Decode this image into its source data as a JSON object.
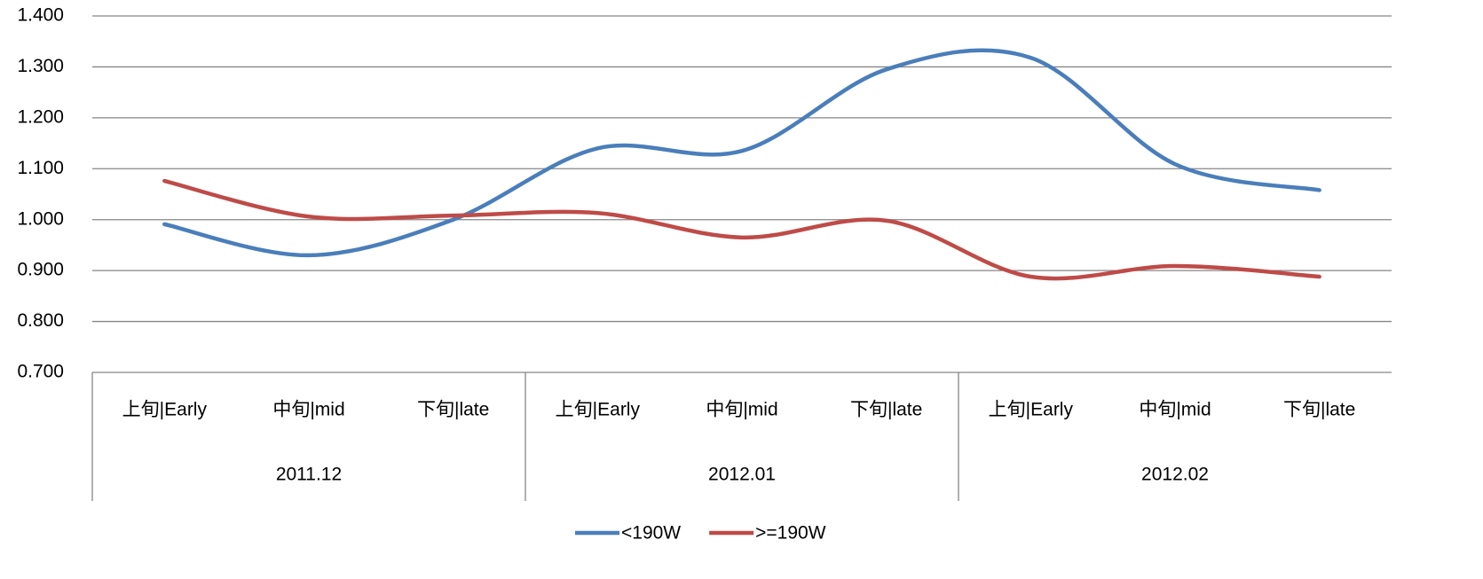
{
  "chart_data": {
    "type": "line",
    "categories": [
      "上旬|Early",
      "中旬|mid",
      "下旬|late",
      "上旬|Early",
      "中旬|mid",
      "下旬|late",
      "上旬|Early",
      "中旬|mid",
      "下旬|late"
    ],
    "groups": [
      "2011.12",
      "2012.01",
      "2012.02"
    ],
    "series": [
      {
        "name": "<190W",
        "color": "#4a7ebb",
        "values": [
          0.991,
          0.93,
          1.0,
          1.14,
          1.135,
          1.295,
          1.318,
          1.109,
          1.058
        ]
      },
      {
        "name": ">=190W",
        "color": "#be4b48",
        "values": [
          1.076,
          1.006,
          1.008,
          1.013,
          0.965,
          0.998,
          0.888,
          0.909,
          0.888
        ]
      }
    ],
    "ylim": [
      0.7,
      1.4
    ],
    "yticks": [
      {
        "value": 0.7,
        "label": "0.700"
      },
      {
        "value": 0.8,
        "label": "0.800"
      },
      {
        "value": 0.9,
        "label": "0.900"
      },
      {
        "value": 1.0,
        "label": "1.000"
      },
      {
        "value": 1.1,
        "label": "1.100"
      },
      {
        "value": 1.2,
        "label": "1.200"
      },
      {
        "value": 1.3,
        "label": "1.300"
      },
      {
        "value": 1.4,
        "label": "1.400"
      }
    ],
    "grid": true,
    "smooth": true,
    "legend": "bottom"
  }
}
